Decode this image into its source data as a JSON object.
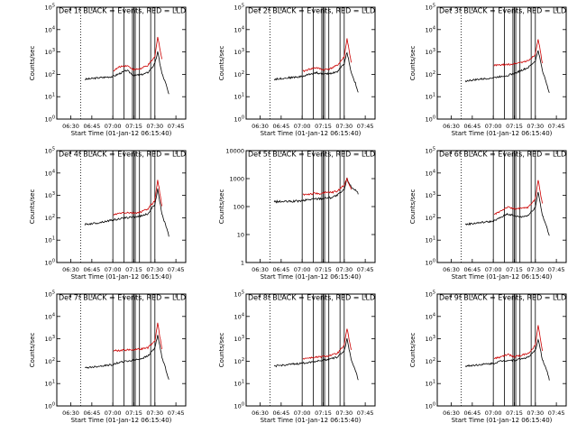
{
  "figure": {
    "series_colors": {
      "events": "#000000",
      "lld": "#cc0000"
    },
    "x_ticks": [
      "06:30",
      "06:45",
      "07:00",
      "07:15",
      "07:30",
      "07:45"
    ],
    "x_label": "Start Time (01-Jan-12 06:15:40)",
    "y_label": "Counts/sec"
  },
  "chart_data": [
    {
      "type": "line",
      "title": "Det 1f BLACK = Events, RED = LLD",
      "y_scale": "log",
      "ylim": [
        1,
        100000
      ],
      "ylabel": "Counts/sec",
      "xlabel": "Start Time (01-Jan-12 06:15:40)",
      "x_ticks": [
        "06:30",
        "06:45",
        "07:00",
        "07:15",
        "07:30",
        "07:45"
      ],
      "y_ticks": [
        "10^0",
        "10^1",
        "10^2",
        "10^3",
        "10^4",
        "10^5"
      ],
      "x": [
        "06:40",
        "06:50",
        "07:00",
        "07:05",
        "07:10",
        "07:15",
        "07:20",
        "07:25",
        "07:30",
        "07:32",
        "07:35",
        "07:38",
        "07:40"
      ],
      "series": [
        {
          "name": "Events",
          "color": "#000000",
          "values": [
            60,
            70,
            80,
            110,
            150,
            90,
            95,
            120,
            300,
            1000,
            110,
            35,
            12
          ]
        },
        {
          "name": "LLD",
          "color": "#cc0000",
          "values": [
            null,
            null,
            140,
            220,
            250,
            160,
            180,
            250,
            600,
            5000,
            450,
            null,
            null
          ]
        }
      ]
    },
    {
      "type": "line",
      "title": "Det 2f BLACK = Events, RED = LLD",
      "y_scale": "log",
      "ylim": [
        1,
        100000
      ],
      "ylabel": "Counts/sec",
      "xlabel": "Start Time (01-Jan-12 06:15:40)",
      "x_ticks": [
        "06:30",
        "06:45",
        "07:00",
        "07:15",
        "07:30",
        "07:45"
      ],
      "y_ticks": [
        "10^0",
        "10^1",
        "10^2",
        "10^3",
        "10^4",
        "10^5"
      ],
      "x": [
        "06:40",
        "06:50",
        "07:00",
        "07:05",
        "07:10",
        "07:15",
        "07:20",
        "07:25",
        "07:30",
        "07:32",
        "07:35",
        "07:38",
        "07:40"
      ],
      "series": [
        {
          "name": "Events",
          "color": "#000000",
          "values": [
            60,
            70,
            80,
            100,
            120,
            100,
            110,
            130,
            300,
            1000,
            120,
            40,
            15
          ]
        },
        {
          "name": "LLD",
          "color": "#cc0000",
          "values": [
            null,
            null,
            130,
            170,
            200,
            160,
            180,
            250,
            600,
            4000,
            350,
            null,
            null
          ]
        }
      ]
    },
    {
      "type": "line",
      "title": "Det 3f BLACK = Events, RED = LLD",
      "y_scale": "log",
      "ylim": [
        1,
        100000
      ],
      "ylabel": "Counts/sec",
      "xlabel": "Start Time (01-Jan-12 06:15:40)",
      "x_ticks": [
        "06:30",
        "06:45",
        "07:00",
        "07:15",
        "07:30",
        "07:45"
      ],
      "y_ticks": [
        "10^0",
        "10^1",
        "10^2",
        "10^3",
        "10^4",
        "10^5"
      ],
      "x": [
        "06:40",
        "06:50",
        "07:00",
        "07:05",
        "07:10",
        "07:15",
        "07:20",
        "07:25",
        "07:30",
        "07:32",
        "07:35",
        "07:38",
        "07:40"
      ],
      "series": [
        {
          "name": "Events",
          "color": "#000000",
          "values": [
            50,
            60,
            70,
            80,
            90,
            110,
            150,
            200,
            400,
            1200,
            150,
            40,
            15
          ]
        },
        {
          "name": "LLD",
          "color": "#cc0000",
          "values": [
            null,
            null,
            250,
            260,
            270,
            300,
            350,
            400,
            800,
            4000,
            300,
            null,
            null
          ]
        }
      ]
    },
    {
      "type": "line",
      "title": "Det 4f BLACK = Events, RED = LLD",
      "y_scale": "log",
      "ylim": [
        1,
        100000
      ],
      "ylabel": "Counts/sec",
      "xlabel": "Start Time (01-Jan-12 06:15:40)",
      "x_ticks": [
        "06:30",
        "06:45",
        "07:00",
        "07:15",
        "07:30",
        "07:45"
      ],
      "y_ticks": [
        "10^0",
        "10^1",
        "10^2",
        "10^3",
        "10^4",
        "10^5"
      ],
      "x": [
        "06:40",
        "06:50",
        "07:00",
        "07:05",
        "07:10",
        "07:15",
        "07:20",
        "07:25",
        "07:30",
        "07:32",
        "07:35",
        "07:38",
        "07:40"
      ],
      "series": [
        {
          "name": "Events",
          "color": "#000000",
          "values": [
            50,
            60,
            80,
            90,
            100,
            110,
            120,
            150,
            400,
            2000,
            150,
            40,
            15
          ]
        },
        {
          "name": "LLD",
          "color": "#cc0000",
          "values": [
            null,
            null,
            130,
            160,
            170,
            160,
            180,
            250,
            600,
            5000,
            350,
            null,
            null
          ]
        }
      ]
    },
    {
      "type": "line",
      "title": "Det 5f BLACK = Events, RED = LLD",
      "y_scale": "log",
      "ylim": [
        1,
        10000
      ],
      "ylabel": "Counts/sec",
      "xlabel": "Start Time (01-Jan-12 06:15:40)",
      "x_ticks": [
        "06:30",
        "06:45",
        "07:00",
        "07:15",
        "07:30",
        "07:45"
      ],
      "y_ticks": [
        "1",
        "10",
        "100",
        "1000",
        "10000"
      ],
      "x": [
        "06:40",
        "06:50",
        "07:00",
        "07:05",
        "07:10",
        "07:15",
        "07:20",
        "07:25",
        "07:30",
        "07:32",
        "07:35",
        "07:38",
        "07:40"
      ],
      "series": [
        {
          "name": "Events",
          "color": "#000000",
          "values": [
            150,
            150,
            160,
            180,
            190,
            200,
            210,
            250,
            400,
            1000,
            500,
            400,
            300
          ]
        },
        {
          "name": "LLD",
          "color": "#cc0000",
          "values": [
            null,
            null,
            270,
            280,
            290,
            300,
            320,
            350,
            600,
            1000,
            400,
            null,
            null
          ]
        }
      ]
    },
    {
      "type": "line",
      "title": "Det 6f BLACK = Events, RED = LLD",
      "y_scale": "log",
      "ylim": [
        1,
        100000
      ],
      "ylabel": "Counts/sec",
      "xlabel": "Start Time (01-Jan-12 06:15:40)",
      "x_ticks": [
        "06:30",
        "06:45",
        "07:00",
        "07:15",
        "07:30",
        "07:45"
      ],
      "y_ticks": [
        "10^0",
        "10^1",
        "10^2",
        "10^3",
        "10^4",
        "10^5"
      ],
      "x": [
        "06:40",
        "06:50",
        "07:00",
        "07:05",
        "07:10",
        "07:15",
        "07:20",
        "07:25",
        "07:30",
        "07:32",
        "07:35",
        "07:38",
        "07:40"
      ],
      "series": [
        {
          "name": "Events",
          "color": "#000000",
          "values": [
            50,
            60,
            70,
            100,
            150,
            120,
            110,
            130,
            300,
            1500,
            130,
            40,
            15
          ]
        },
        {
          "name": "LLD",
          "color": "#cc0000",
          "values": [
            null,
            null,
            130,
            200,
            300,
            250,
            260,
            300,
            700,
            5000,
            400,
            null,
            null
          ]
        }
      ]
    },
    {
      "type": "line",
      "title": "Det 7f BLACK = Events, RED = LLD",
      "y_scale": "log",
      "ylim": [
        1,
        100000
      ],
      "ylabel": "Counts/sec",
      "xlabel": "Start Time (01-Jan-12 06:15:40)",
      "x_ticks": [
        "06:30",
        "06:45",
        "07:00",
        "07:15",
        "07:30",
        "07:45"
      ],
      "y_ticks": [
        "10^0",
        "10^1",
        "10^2",
        "10^3",
        "10^4",
        "10^5"
      ],
      "x": [
        "06:40",
        "06:50",
        "07:00",
        "07:05",
        "07:10",
        "07:15",
        "07:20",
        "07:25",
        "07:30",
        "07:32",
        "07:35",
        "07:38",
        "07:40"
      ],
      "series": [
        {
          "name": "Events",
          "color": "#000000",
          "values": [
            50,
            60,
            70,
            90,
            100,
            110,
            130,
            170,
            400,
            1500,
            150,
            40,
            15
          ]
        },
        {
          "name": "LLD",
          "color": "#cc0000",
          "values": [
            null,
            null,
            300,
            300,
            320,
            330,
            350,
            400,
            800,
            5000,
            350,
            null,
            null
          ]
        }
      ]
    },
    {
      "type": "line",
      "title": "Det 8f BLACK = Events, RED = LLD",
      "y_scale": "log",
      "ylim": [
        1,
        100000
      ],
      "ylabel": "Counts/sec",
      "xlabel": "Start Time (01-Jan-12 06:15:40)",
      "x_ticks": [
        "06:30",
        "06:45",
        "07:00",
        "07:15",
        "07:30",
        "07:45"
      ],
      "y_ticks": [
        "10^0",
        "10^1",
        "10^2",
        "10^3",
        "10^4",
        "10^5"
      ],
      "x": [
        "06:40",
        "06:50",
        "07:00",
        "07:05",
        "07:10",
        "07:15",
        "07:20",
        "07:25",
        "07:30",
        "07:32",
        "07:35",
        "07:38",
        "07:40"
      ],
      "series": [
        {
          "name": "Events",
          "color": "#000000",
          "values": [
            60,
            70,
            80,
            90,
            100,
            110,
            130,
            150,
            300,
            1000,
            120,
            40,
            15
          ]
        },
        {
          "name": "LLD",
          "color": "#cc0000",
          "values": [
            null,
            null,
            130,
            140,
            150,
            160,
            180,
            220,
            500,
            3000,
            300,
            null,
            null
          ]
        }
      ]
    },
    {
      "type": "line",
      "title": "Det 9f BLACK = Events, RED = LLD",
      "y_scale": "log",
      "ylim": [
        1,
        100000
      ],
      "ylabel": "Counts/sec",
      "xlabel": "Start Time (01-Jan-12 06:15:40)",
      "x_ticks": [
        "06:30",
        "06:45",
        "07:00",
        "07:15",
        "07:30",
        "07:45"
      ],
      "y_ticks": [
        "10^0",
        "10^1",
        "10^2",
        "10^3",
        "10^4",
        "10^5"
      ],
      "x": [
        "06:40",
        "06:50",
        "07:00",
        "07:05",
        "07:10",
        "07:15",
        "07:20",
        "07:25",
        "07:30",
        "07:32",
        "07:35",
        "07:38",
        "07:40"
      ],
      "series": [
        {
          "name": "Events",
          "color": "#000000",
          "values": [
            60,
            70,
            80,
            100,
            110,
            110,
            130,
            150,
            300,
            1000,
            120,
            40,
            15
          ]
        },
        {
          "name": "LLD",
          "color": "#cc0000",
          "values": [
            null,
            null,
            130,
            150,
            200,
            160,
            180,
            230,
            500,
            4000,
            300,
            null,
            null
          ]
        }
      ]
    }
  ]
}
